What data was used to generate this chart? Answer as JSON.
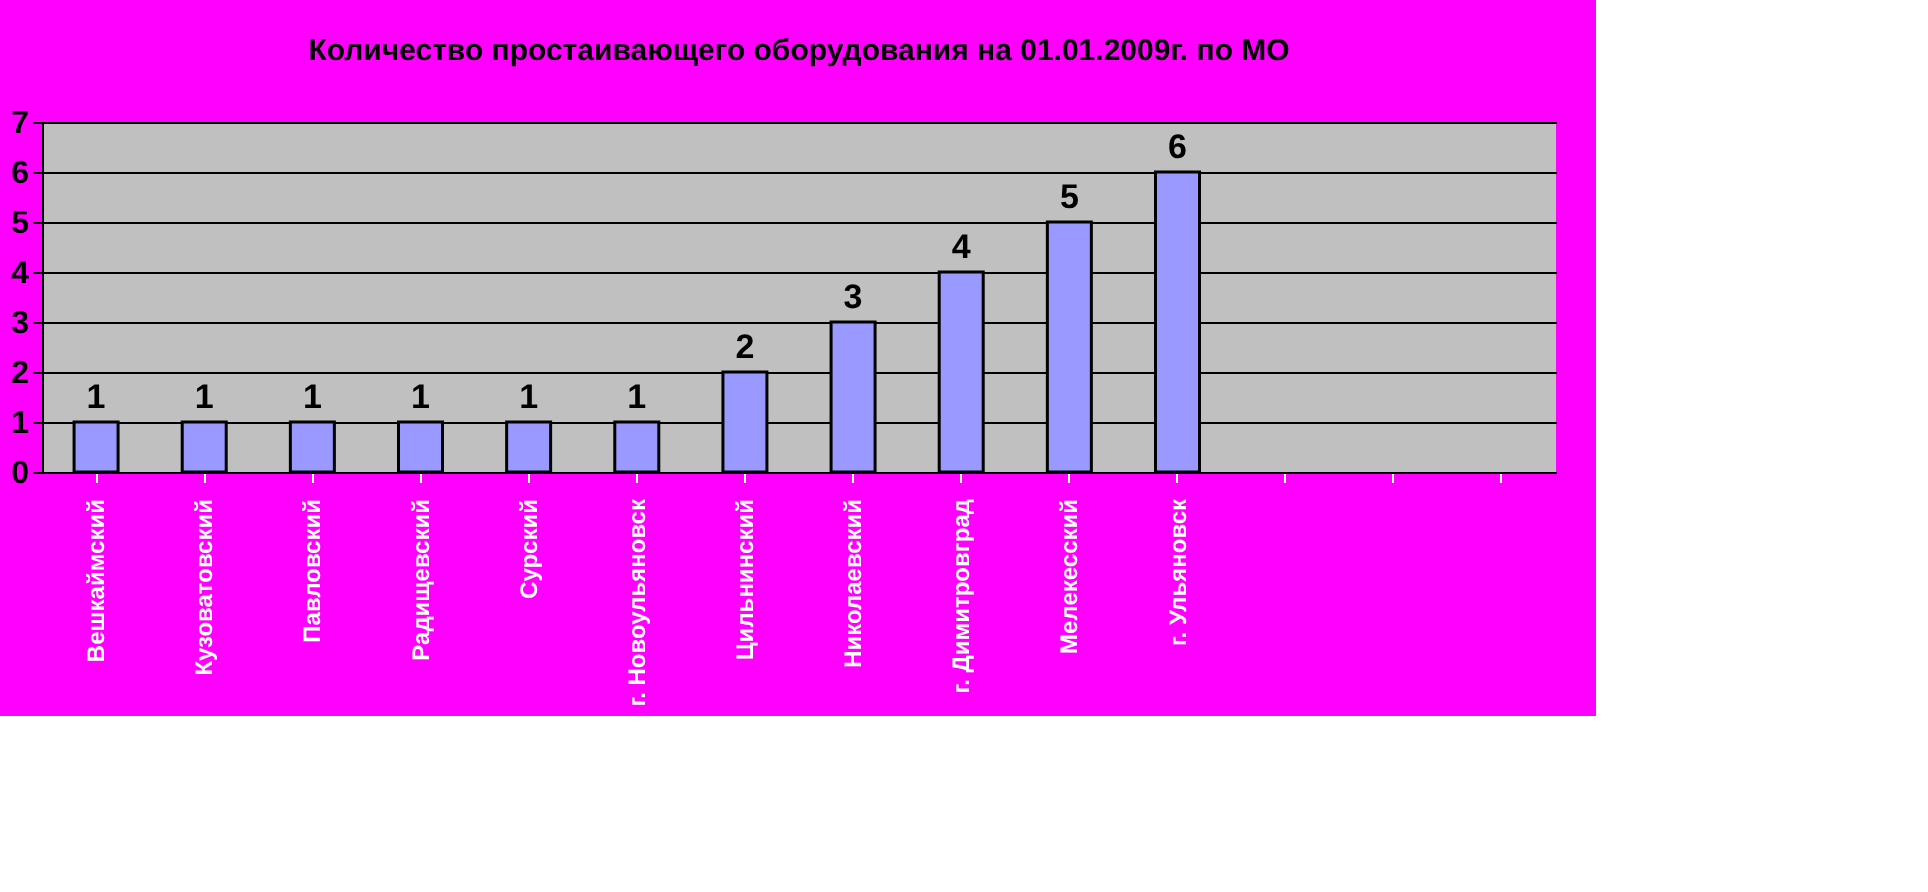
{
  "chart_data": {
    "type": "bar",
    "title": "Количество простаивающего оборудования на 01.01.2009г. по МО",
    "categories": [
      "Вешкаймский",
      "Кузоватовский",
      "Павловский",
      "Радищевский",
      "Сурский",
      "г. Новоульяновск",
      "Цильнинский",
      "Николаевский",
      "г. Димитровград",
      "Мелекесский",
      "г. Ульяновск",
      null,
      null,
      null
    ],
    "values": [
      1,
      1,
      1,
      1,
      1,
      1,
      2,
      3,
      4,
      5,
      6,
      null,
      null,
      null
    ],
    "color": "#9999ff",
    "ylim": [
      0,
      7
    ],
    "yticks": [
      0,
      1,
      2,
      3,
      4,
      5,
      6,
      7
    ],
    "grid": "y",
    "data_labels": true
  }
}
